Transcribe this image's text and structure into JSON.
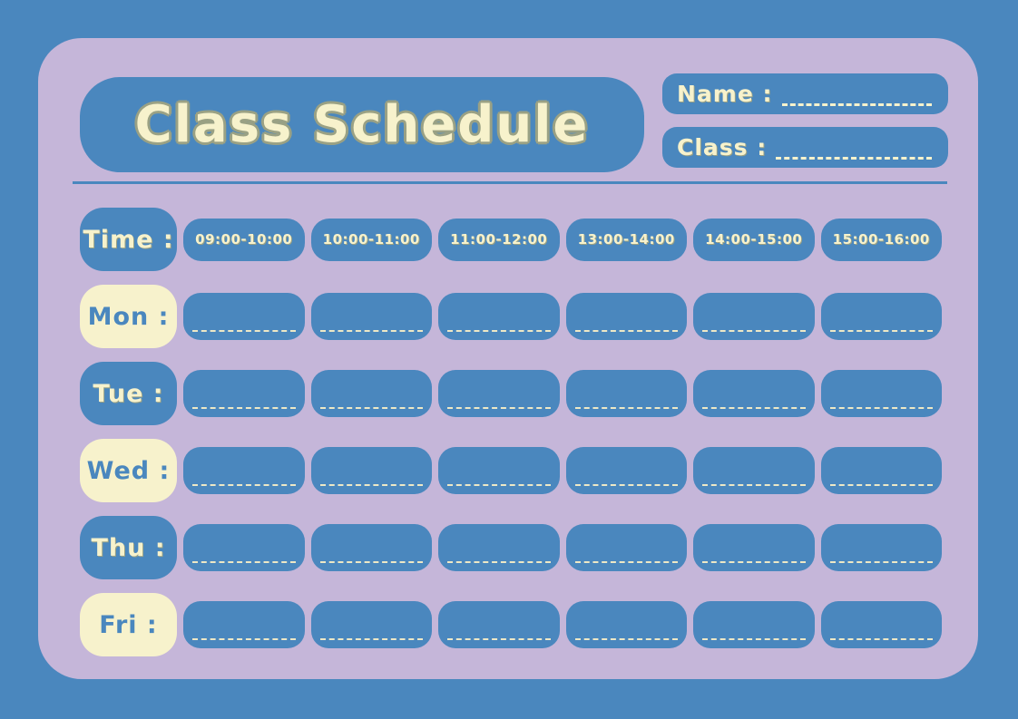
{
  "colors": {
    "blue": "#4A87BE",
    "lavender": "#C5B6D9",
    "cream": "#F7F2CC",
    "outline": "#9AA184",
    "dash": "#EDE8C6"
  },
  "header": {
    "title": "Class Schedule",
    "name_label": "Name :",
    "class_label": "Class :"
  },
  "schedule": {
    "time_label": "Time :",
    "time_slots": [
      "09:00-10:00",
      "10:00-11:00",
      "11:00-12:00",
      "13:00-14:00",
      "14:00-15:00",
      "15:00-16:00"
    ],
    "days": [
      {
        "label": "Mon :",
        "style": "cream"
      },
      {
        "label": "Tue :",
        "style": "blue"
      },
      {
        "label": "Wed :",
        "style": "cream"
      },
      {
        "label": "Thu :",
        "style": "blue"
      },
      {
        "label": "Fri :",
        "style": "cream"
      }
    ]
  }
}
